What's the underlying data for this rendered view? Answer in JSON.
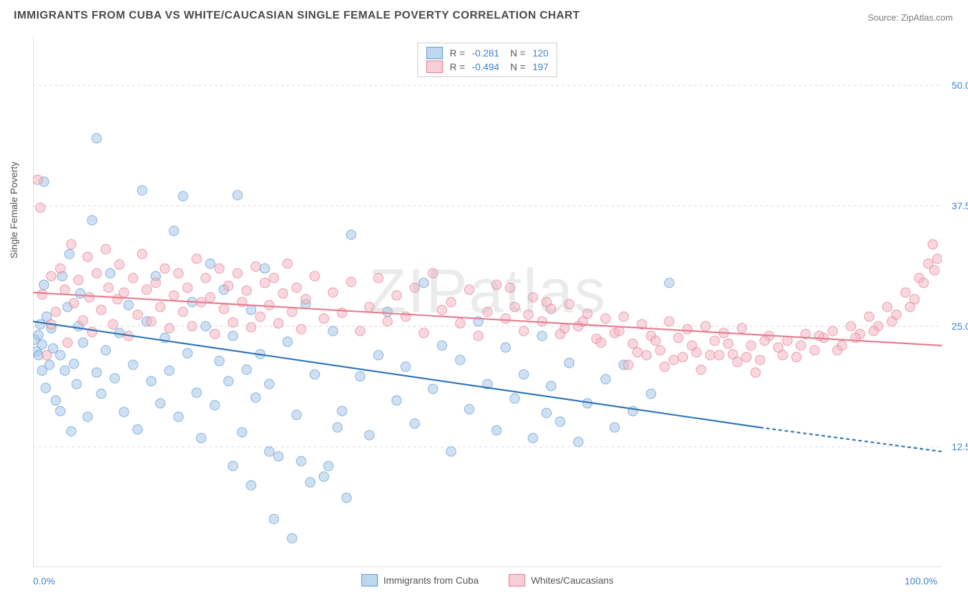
{
  "title": "IMMIGRANTS FROM CUBA VS WHITE/CAUCASIAN SINGLE FEMALE POVERTY CORRELATION CHART",
  "source_label": "Source:",
  "source_site": "ZipAtlas.com",
  "ylabel": "Single Female Poverty",
  "watermark": "ZIPatlas",
  "chart": {
    "type": "scatter",
    "background_color": "#ffffff",
    "grid_color": "#d9d9d9",
    "grid_dash": "4 4",
    "axis_color": "#bfbfbf",
    "tick_color": "#bfbfbf",
    "xlim": [
      0,
      100
    ],
    "ylim": [
      0,
      55
    ],
    "xticks": [
      0,
      12.5,
      25,
      37.5,
      50,
      62.5,
      75,
      87.5,
      100
    ],
    "xtick_labels": {
      "0": "0.0%",
      "100": "100.0%"
    },
    "yticks": [
      12.5,
      25,
      37.5,
      50
    ],
    "ytick_labels": {
      "12.5": "12.5%",
      "25": "25.0%",
      "37.5": "37.5%",
      "50": "50.0%"
    },
    "marker_radius": 7,
    "marker_opacity": 0.55,
    "series": [
      {
        "name": "Immigrants from Cuba",
        "color_fill": "#a7c7e7",
        "color_stroke": "#5b9bd5",
        "swatch_fill": "#bdd7ee",
        "swatch_stroke": "#5b9bd5",
        "trend_color": "#2e75b6",
        "trend_width": 2.2,
        "trend_start": [
          0,
          25.5
        ],
        "trend_end_solid": [
          80,
          14.5
        ],
        "trend_end_dash": [
          100,
          12.0
        ],
        "points": [
          [
            0.2,
            23.6
          ],
          [
            0.4,
            22.4
          ],
          [
            0.6,
            24.1
          ],
          [
            0.6,
            22.0
          ],
          [
            0.8,
            25.2
          ],
          [
            1.0,
            23.1
          ],
          [
            1.0,
            20.4
          ],
          [
            1.2,
            29.3
          ],
          [
            1.2,
            40.0
          ],
          [
            1.4,
            18.6
          ],
          [
            1.5,
            26.0
          ],
          [
            1.8,
            21.0
          ],
          [
            2.0,
            24.8
          ],
          [
            2.2,
            22.7
          ],
          [
            2.5,
            17.3
          ],
          [
            3.0,
            16.2
          ],
          [
            3.0,
            22.0
          ],
          [
            3.2,
            30.2
          ],
          [
            3.5,
            20.4
          ],
          [
            3.8,
            27.0
          ],
          [
            4.0,
            32.5
          ],
          [
            4.2,
            14.1
          ],
          [
            4.5,
            21.1
          ],
          [
            4.8,
            19.0
          ],
          [
            5.0,
            25.0
          ],
          [
            5.2,
            28.4
          ],
          [
            5.5,
            23.3
          ],
          [
            6.0,
            15.6
          ],
          [
            6.5,
            36.0
          ],
          [
            7.0,
            20.2
          ],
          [
            7.0,
            44.5
          ],
          [
            7.5,
            18.0
          ],
          [
            8.0,
            22.5
          ],
          [
            8.5,
            30.5
          ],
          [
            9.0,
            19.6
          ],
          [
            9.5,
            24.3
          ],
          [
            10.0,
            16.1
          ],
          [
            10.5,
            27.2
          ],
          [
            11.0,
            21.0
          ],
          [
            11.5,
            14.3
          ],
          [
            12.0,
            39.1
          ],
          [
            12.5,
            25.5
          ],
          [
            13.0,
            19.3
          ],
          [
            13.5,
            30.2
          ],
          [
            14.0,
            17.0
          ],
          [
            14.5,
            23.8
          ],
          [
            15.0,
            20.4
          ],
          [
            15.5,
            34.9
          ],
          [
            16.0,
            15.6
          ],
          [
            16.5,
            38.5
          ],
          [
            17.0,
            22.2
          ],
          [
            17.5,
            27.5
          ],
          [
            18.0,
            18.1
          ],
          [
            18.5,
            13.4
          ],
          [
            19.0,
            25.0
          ],
          [
            19.5,
            31.5
          ],
          [
            20.0,
            16.8
          ],
          [
            20.5,
            21.4
          ],
          [
            21.0,
            28.8
          ],
          [
            21.5,
            19.3
          ],
          [
            22.0,
            24.0
          ],
          [
            22.5,
            38.6
          ],
          [
            23.0,
            14.0
          ],
          [
            23.5,
            20.5
          ],
          [
            24.0,
            26.7
          ],
          [
            24.5,
            17.6
          ],
          [
            25.0,
            22.1
          ],
          [
            25.5,
            31.0
          ],
          [
            26.0,
            19.0
          ],
          [
            27.0,
            11.5
          ],
          [
            28.0,
            23.4
          ],
          [
            29.0,
            15.8
          ],
          [
            30.0,
            27.3
          ],
          [
            31.0,
            20.0
          ],
          [
            32.0,
            9.4
          ],
          [
            33.0,
            24.5
          ],
          [
            34.0,
            16.2
          ],
          [
            35.0,
            34.5
          ],
          [
            36.0,
            19.8
          ],
          [
            37.0,
            13.7
          ],
          [
            38.0,
            22.0
          ],
          [
            39.0,
            26.5
          ],
          [
            40.0,
            17.3
          ],
          [
            41.0,
            20.8
          ],
          [
            42.0,
            14.9
          ],
          [
            43.0,
            29.5
          ],
          [
            44.0,
            18.5
          ],
          [
            45.0,
            23.0
          ],
          [
            46.0,
            12.0
          ],
          [
            47.0,
            21.5
          ],
          [
            48.0,
            16.4
          ],
          [
            49.0,
            25.5
          ],
          [
            50.0,
            19.0
          ],
          [
            51.0,
            14.2
          ],
          [
            52.0,
            22.8
          ],
          [
            53.0,
            17.5
          ],
          [
            54.0,
            20.0
          ],
          [
            55.0,
            13.4
          ],
          [
            56.0,
            24.0
          ],
          [
            56.5,
            16.0
          ],
          [
            57.0,
            18.8
          ],
          [
            58.0,
            15.1
          ],
          [
            59.0,
            21.2
          ],
          [
            60.0,
            13.0
          ],
          [
            61.0,
            17.0
          ],
          [
            63.0,
            19.5
          ],
          [
            64.0,
            14.5
          ],
          [
            65.0,
            21.0
          ],
          [
            66.0,
            16.2
          ],
          [
            68.0,
            18.0
          ],
          [
            70.0,
            29.5
          ],
          [
            28.5,
            3.0
          ],
          [
            30.5,
            8.8
          ],
          [
            32.5,
            10.5
          ],
          [
            34.5,
            7.2
          ],
          [
            26.5,
            5.0
          ],
          [
            22.0,
            10.5
          ],
          [
            24.0,
            8.5
          ],
          [
            26.0,
            12.0
          ],
          [
            29.5,
            11.0
          ],
          [
            33.5,
            14.5
          ]
        ]
      },
      {
        "name": "Whites/Caucasians",
        "color_fill": "#f4b6c2",
        "color_stroke": "#e77c8d",
        "swatch_fill": "#f8cdd6",
        "swatch_stroke": "#e77c8d",
        "trend_color": "#e77c8d",
        "trend_width": 2.2,
        "trend_start": [
          0,
          28.5
        ],
        "trend_end_solid": [
          100,
          23.0
        ],
        "points": [
          [
            0.5,
            40.2
          ],
          [
            0.8,
            37.3
          ],
          [
            1.0,
            28.3
          ],
          [
            1.5,
            22.0
          ],
          [
            2.0,
            30.2
          ],
          [
            2.0,
            25.2
          ],
          [
            2.5,
            26.5
          ],
          [
            3.0,
            31.0
          ],
          [
            3.5,
            28.8
          ],
          [
            3.8,
            23.3
          ],
          [
            4.2,
            33.5
          ],
          [
            4.5,
            27.4
          ],
          [
            5.0,
            29.8
          ],
          [
            5.5,
            25.6
          ],
          [
            6.0,
            32.2
          ],
          [
            6.2,
            28.0
          ],
          [
            6.5,
            24.4
          ],
          [
            7.0,
            30.5
          ],
          [
            7.5,
            26.7
          ],
          [
            8.0,
            33.0
          ],
          [
            8.3,
            29.0
          ],
          [
            8.8,
            25.2
          ],
          [
            9.3,
            27.8
          ],
          [
            9.5,
            31.4
          ],
          [
            10.0,
            28.5
          ],
          [
            10.5,
            24.0
          ],
          [
            11.0,
            30.0
          ],
          [
            11.5,
            26.2
          ],
          [
            12.0,
            32.5
          ],
          [
            12.5,
            28.8
          ],
          [
            13.0,
            25.5
          ],
          [
            13.5,
            29.5
          ],
          [
            14.0,
            27.0
          ],
          [
            14.5,
            31.0
          ],
          [
            15.0,
            24.8
          ],
          [
            15.5,
            28.2
          ],
          [
            16.0,
            30.5
          ],
          [
            16.5,
            26.5
          ],
          [
            17.0,
            29.0
          ],
          [
            17.5,
            25.0
          ],
          [
            18.0,
            32.0
          ],
          [
            18.5,
            27.5
          ],
          [
            19.0,
            30.0
          ],
          [
            19.5,
            28.0
          ],
          [
            20.0,
            24.2
          ],
          [
            20.5,
            31.0
          ],
          [
            21.0,
            26.8
          ],
          [
            21.5,
            29.2
          ],
          [
            22.0,
            25.4
          ],
          [
            22.5,
            30.5
          ],
          [
            23.0,
            27.5
          ],
          [
            23.5,
            28.7
          ],
          [
            24.0,
            24.9
          ],
          [
            24.5,
            31.2
          ],
          [
            25.0,
            26.0
          ],
          [
            25.5,
            29.5
          ],
          [
            26.0,
            27.2
          ],
          [
            26.5,
            30.0
          ],
          [
            27.0,
            25.3
          ],
          [
            27.5,
            28.4
          ],
          [
            28.0,
            31.5
          ],
          [
            28.5,
            26.5
          ],
          [
            29.0,
            29.0
          ],
          [
            29.5,
            24.7
          ],
          [
            30.0,
            27.8
          ],
          [
            31.0,
            30.2
          ],
          [
            32.0,
            25.8
          ],
          [
            33.0,
            28.5
          ],
          [
            34.0,
            26.4
          ],
          [
            35.0,
            29.6
          ],
          [
            36.0,
            24.5
          ],
          [
            37.0,
            27.0
          ],
          [
            38.0,
            30.0
          ],
          [
            39.0,
            25.5
          ],
          [
            40.0,
            28.2
          ],
          [
            41.0,
            26.0
          ],
          [
            42.0,
            29.0
          ],
          [
            43.0,
            24.3
          ],
          [
            44.0,
            30.5
          ],
          [
            45.0,
            26.7
          ],
          [
            46.0,
            27.5
          ],
          [
            47.0,
            25.3
          ],
          [
            48.0,
            28.8
          ],
          [
            49.0,
            24.0
          ],
          [
            50.0,
            26.5
          ],
          [
            51.0,
            29.3
          ],
          [
            52.0,
            25.8
          ],
          [
            53.0,
            27.0
          ],
          [
            54.0,
            24.5
          ],
          [
            55.0,
            28.0
          ],
          [
            56.0,
            25.5
          ],
          [
            57.0,
            26.8
          ],
          [
            58.0,
            24.2
          ],
          [
            59.0,
            27.3
          ],
          [
            60.0,
            25.0
          ],
          [
            61.0,
            26.3
          ],
          [
            62.0,
            23.7
          ],
          [
            63.0,
            25.8
          ],
          [
            64.0,
            24.3
          ],
          [
            65.0,
            26.0
          ],
          [
            66.0,
            23.2
          ],
          [
            67.0,
            25.2
          ],
          [
            68.0,
            24.0
          ],
          [
            69.0,
            22.5
          ],
          [
            70.0,
            25.5
          ],
          [
            71.0,
            23.8
          ],
          [
            72.0,
            24.7
          ],
          [
            73.0,
            22.3
          ],
          [
            74.0,
            25.0
          ],
          [
            75.0,
            23.5
          ],
          [
            76.0,
            24.3
          ],
          [
            77.0,
            22.1
          ],
          [
            78.0,
            24.8
          ],
          [
            79.0,
            23.0
          ],
          [
            80.0,
            21.5
          ],
          [
            81.0,
            24.0
          ],
          [
            82.0,
            22.8
          ],
          [
            83.0,
            23.5
          ],
          [
            84.0,
            21.8
          ],
          [
            85.0,
            24.2
          ],
          [
            86.0,
            22.5
          ],
          [
            87.0,
            23.8
          ],
          [
            88.0,
            24.5
          ],
          [
            89.0,
            23.0
          ],
          [
            90.0,
            25.0
          ],
          [
            91.0,
            24.2
          ],
          [
            92.0,
            26.0
          ],
          [
            93.0,
            25.0
          ],
          [
            94.0,
            27.0
          ],
          [
            95.0,
            26.2
          ],
          [
            96.0,
            28.5
          ],
          [
            97.0,
            27.8
          ],
          [
            97.5,
            30.0
          ],
          [
            98.0,
            29.5
          ],
          [
            98.5,
            31.5
          ],
          [
            99.0,
            33.5
          ],
          [
            99.2,
            30.8
          ],
          [
            99.5,
            32.0
          ],
          [
            65.5,
            21.0
          ],
          [
            67.5,
            22.0
          ],
          [
            69.5,
            20.8
          ],
          [
            71.5,
            21.8
          ],
          [
            73.5,
            20.5
          ],
          [
            75.5,
            22.0
          ],
          [
            77.5,
            21.3
          ],
          [
            79.5,
            20.2
          ],
          [
            52.5,
            29.0
          ],
          [
            54.5,
            26.2
          ],
          [
            56.5,
            27.5
          ],
          [
            58.5,
            24.8
          ],
          [
            60.5,
            25.5
          ],
          [
            62.5,
            23.3
          ],
          [
            64.5,
            24.5
          ],
          [
            66.5,
            22.3
          ],
          [
            68.5,
            23.5
          ],
          [
            70.5,
            21.5
          ],
          [
            72.5,
            23.0
          ],
          [
            74.5,
            22.0
          ],
          [
            76.5,
            23.2
          ],
          [
            78.5,
            21.8
          ],
          [
            80.5,
            23.5
          ],
          [
            82.5,
            22.0
          ],
          [
            84.5,
            23.0
          ],
          [
            86.5,
            24.0
          ],
          [
            88.5,
            22.5
          ],
          [
            90.5,
            23.8
          ],
          [
            92.5,
            24.5
          ],
          [
            94.5,
            25.5
          ],
          [
            96.5,
            27.0
          ]
        ]
      }
    ]
  },
  "legend_top": {
    "rows": [
      {
        "sw_fill": "#bdd7ee",
        "sw_stroke": "#5b9bd5",
        "r_label": "R =",
        "r_value": "-0.281",
        "n_label": "N =",
        "n_value": "120"
      },
      {
        "sw_fill": "#f8cdd6",
        "sw_stroke": "#e77c8d",
        "r_label": "R =",
        "r_value": "-0.494",
        "n_label": "N =",
        "n_value": "197"
      }
    ]
  },
  "legend_bottom": {
    "items": [
      {
        "sw_fill": "#bdd7ee",
        "sw_stroke": "#5b9bd5",
        "label": "Immigrants from Cuba"
      },
      {
        "sw_fill": "#f8cdd6",
        "sw_stroke": "#e77c8d",
        "label": "Whites/Caucasians"
      }
    ]
  }
}
